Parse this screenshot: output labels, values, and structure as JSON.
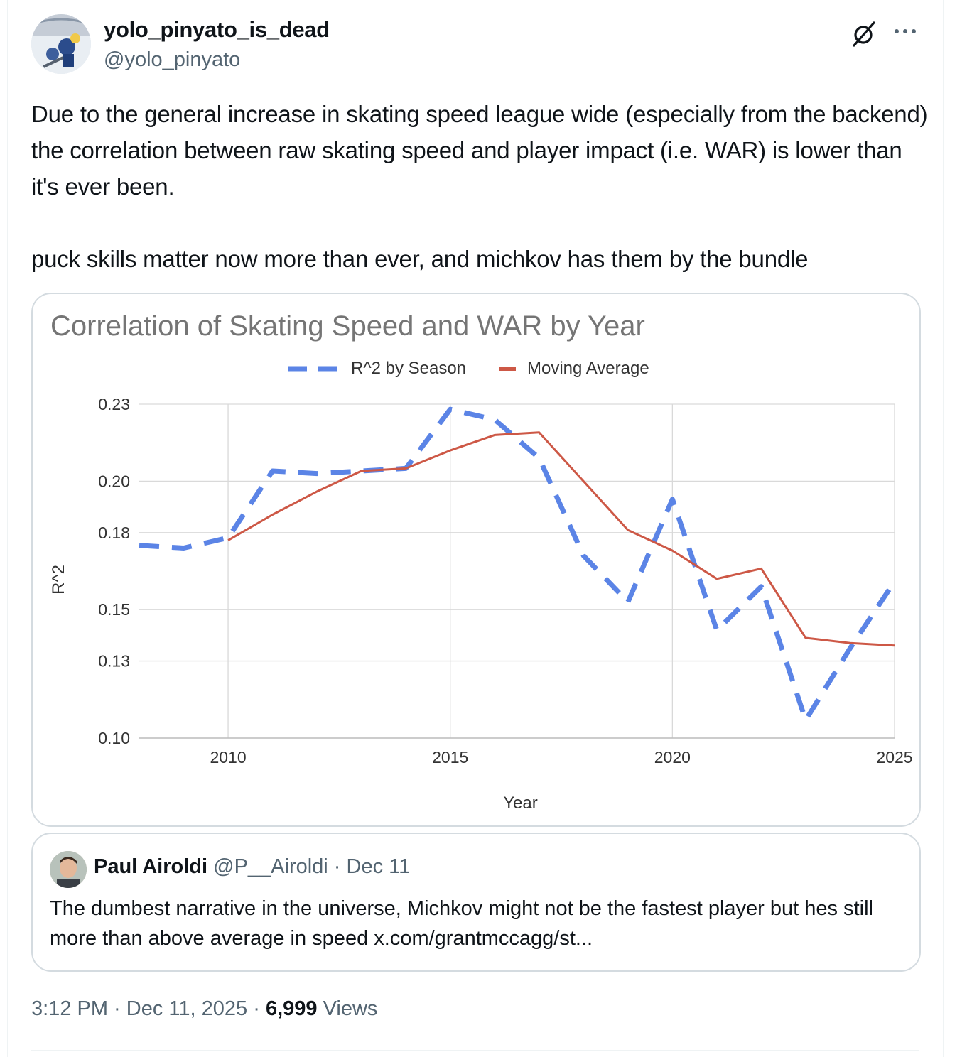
{
  "tweet": {
    "display_name": "yolo_pinyato_is_dead",
    "handle": "@yolo_pinyato",
    "text": "Due to the general increase in skating speed league wide (especially from the backend) the correlation between raw skating speed and player impact (i.e. WAR) is lower than it's ever been.\n\npuck skills matter now more than ever, and michkov has them by the bundle",
    "time": "3:12 PM",
    "date": "Dec 11, 2025",
    "views_count": "6,999",
    "views_label": "Views",
    "sep": " · "
  },
  "icons": {
    "avatar": "hockey-avatar",
    "grok": "grok-slash-icon",
    "more": "more-dots-icon",
    "quote_avatar": "person-avatar"
  },
  "colors": {
    "text": "#0f1419",
    "secondary": "#536471",
    "border": "#d4dbe0",
    "series_dashed": "#5b84e6",
    "series_solid": "#cd5846"
  },
  "quote": {
    "name": "Paul Airoldi",
    "handle": "@P__Airoldi",
    "sep": " · ",
    "date": "Dec 11",
    "text": "The dumbest narrative in the universe, Michkov might not be the fastest player but hes still more than above average in speed x.com/grantmccagg/st..."
  },
  "chart_data": {
    "type": "line",
    "title": "Correlation of Skating Speed and WAR by Year",
    "xlabel": "Year",
    "ylabel": "R^2",
    "xlim": [
      2008,
      2025
    ],
    "ylim": [
      0.1,
      0.23
    ],
    "xticks": [
      "2010",
      "2015",
      "2020",
      "2025"
    ],
    "yticks": [
      "0.10",
      "0.13",
      "0.15",
      "0.18",
      "0.20",
      "0.23"
    ],
    "legend_position": "top",
    "grid": true,
    "x": [
      2008,
      2009,
      2010,
      2011,
      2012,
      2013,
      2014,
      2015,
      2016,
      2017,
      2018,
      2019,
      2020,
      2021,
      2022,
      2023,
      2024,
      2025
    ],
    "series": [
      {
        "name": "R^2 by Season",
        "style": "dashed",
        "color": "#5b84e6",
        "values": [
          0.175,
          0.174,
          0.178,
          0.204,
          0.203,
          0.204,
          0.205,
          0.228,
          0.224,
          0.209,
          0.171,
          0.153,
          0.193,
          0.142,
          0.159,
          0.107,
          0.135,
          0.161
        ]
      },
      {
        "name": "Moving Average",
        "style": "solid",
        "color": "#cd5846",
        "values": [
          null,
          null,
          0.177,
          0.187,
          0.196,
          0.204,
          0.205,
          0.212,
          0.218,
          0.219,
          0.2,
          0.181,
          0.173,
          0.162,
          0.166,
          0.139,
          0.137,
          0.136
        ]
      }
    ]
  }
}
